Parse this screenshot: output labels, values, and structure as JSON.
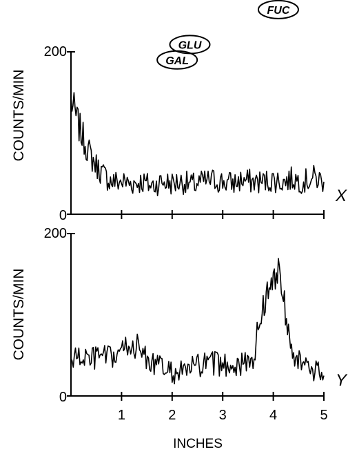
{
  "chart_data": [
    {
      "type": "line",
      "panel_label": "X",
      "ylabel": "COUNTS/MIN",
      "xlabel": "",
      "xlim": [
        0,
        5
      ],
      "ylim": [
        0,
        200
      ],
      "yticks": [
        {
          "value": 0,
          "label": "0"
        },
        {
          "value": 200,
          "label": "200"
        }
      ],
      "xticks": [
        1,
        2,
        3,
        4,
        5
      ],
      "annotations": [
        {
          "text": "GLU",
          "x": 2.35,
          "y": 209
        },
        {
          "text": "GAL",
          "x": 2.1,
          "y": 190
        },
        {
          "text": "FUC",
          "x": 4.1,
          "y": 252
        }
      ],
      "series": [
        {
          "x": [
            0.0,
            0.1,
            0.2,
            0.3,
            0.4,
            0.5,
            0.6,
            0.7,
            0.8,
            1.0,
            1.2,
            1.4,
            1.6,
            1.8,
            2.0,
            2.2,
            2.4,
            2.6,
            2.8,
            3.0,
            3.2,
            3.4,
            3.6,
            3.8,
            4.0,
            4.2,
            4.4,
            4.6,
            4.8,
            5.0
          ],
          "y": [
            140,
            120,
            100,
            85,
            70,
            60,
            52,
            45,
            40,
            40,
            38,
            40,
            35,
            40,
            38,
            40,
            36,
            40,
            42,
            40,
            38,
            42,
            40,
            40,
            42,
            40,
            44,
            40,
            45,
            40
          ]
        }
      ]
    },
    {
      "type": "line",
      "panel_label": "Y",
      "ylabel": "COUNTS/MIN",
      "xlabel": "INCHES",
      "xlim": [
        0,
        5
      ],
      "ylim": [
        0,
        200
      ],
      "yticks": [
        {
          "value": 0,
          "label": "0"
        },
        {
          "value": 200,
          "label": "200"
        }
      ],
      "xticks": [
        1,
        2,
        3,
        4,
        5
      ],
      "series": [
        {
          "x": [
            0.0,
            0.2,
            0.4,
            0.6,
            0.8,
            1.0,
            1.1,
            1.2,
            1.4,
            1.6,
            1.8,
            2.0,
            2.2,
            2.4,
            2.6,
            2.8,
            3.0,
            3.2,
            3.4,
            3.6,
            3.7,
            3.8,
            3.9,
            4.0,
            4.1,
            4.2,
            4.3,
            4.4,
            4.6,
            4.8,
            5.0
          ],
          "y": [
            45,
            48,
            45,
            50,
            45,
            55,
            60,
            65,
            55,
            40,
            35,
            28,
            30,
            35,
            38,
            40,
            38,
            40,
            38,
            45,
            80,
            115,
            125,
            140,
            165,
            120,
            85,
            55,
            35,
            30,
            25
          ]
        }
      ]
    }
  ]
}
